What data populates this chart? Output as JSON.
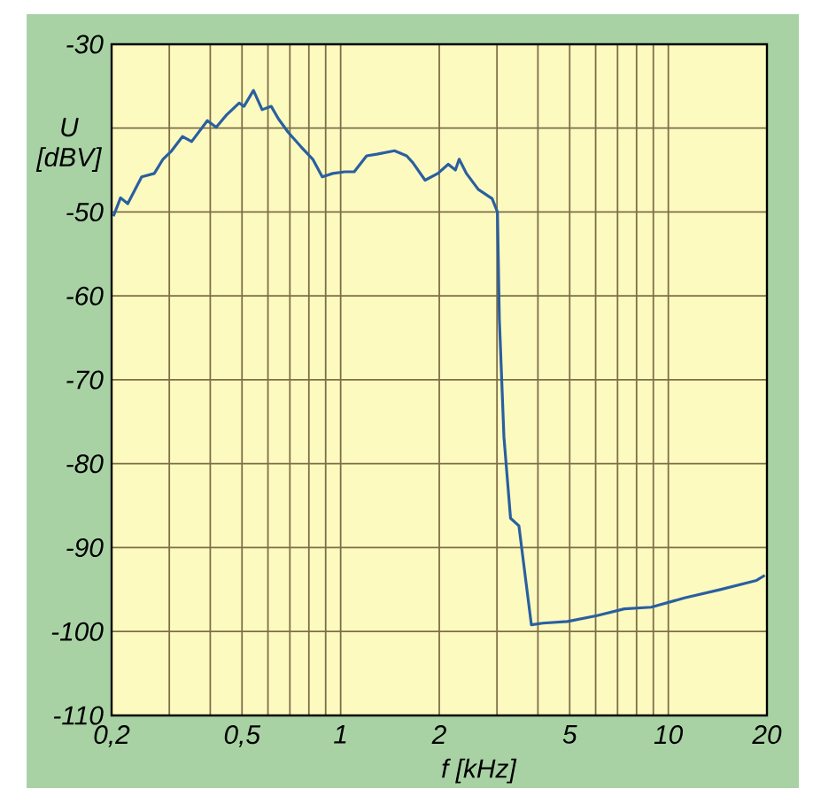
{
  "chart_data": {
    "type": "line",
    "xlabel": "f [kHz]",
    "ylabel": "U [dBV]",
    "log": "x",
    "grid": true,
    "marker": "none",
    "line_style": "solid",
    "xlim": [
      0.2,
      20
    ],
    "ylim": [
      -110,
      -30
    ],
    "xticks": [
      {
        "value": 0.2,
        "label": "0,2"
      },
      {
        "value": 0.3,
        "label": null
      },
      {
        "value": 0.4,
        "label": null
      },
      {
        "value": 0.5,
        "label": "0,5"
      },
      {
        "value": 0.6,
        "label": null
      },
      {
        "value": 0.7,
        "label": null
      },
      {
        "value": 0.8,
        "label": null
      },
      {
        "value": 0.9,
        "label": null
      },
      {
        "value": 1,
        "label": "1"
      },
      {
        "value": 2,
        "label": "2"
      },
      {
        "value": 3,
        "label": null
      },
      {
        "value": 4,
        "label": null
      },
      {
        "value": 5,
        "label": "5"
      },
      {
        "value": 6,
        "label": null
      },
      {
        "value": 7,
        "label": null
      },
      {
        "value": 8,
        "label": null
      },
      {
        "value": 9,
        "label": null
      },
      {
        "value": 10,
        "label": "10"
      },
      {
        "value": 20,
        "label": "20"
      }
    ],
    "yticks": [
      -110,
      -100,
      -90,
      -80,
      -70,
      -60,
      -50,
      {
        "value": -40,
        "label": null
      },
      -30
    ],
    "x": [
      0.2025,
      0.213,
      0.224,
      0.247,
      0.27,
      0.287,
      0.305,
      0.329,
      0.351,
      0.392,
      0.417,
      0.449,
      0.49,
      0.507,
      0.542,
      0.576,
      0.614,
      0.646,
      0.692,
      0.756,
      0.822,
      0.879,
      0.946,
      1.03,
      1.1,
      1.2,
      1.29,
      1.46,
      1.59,
      1.66,
      1.81,
      1.98,
      2.13,
      2.24,
      2.3,
      2.42,
      2.63,
      2.9,
      3.01,
      3.05,
      3.15,
      3.3,
      3.5,
      3.82,
      4.14,
      4.92,
      6.06,
      7.34,
      8.86,
      11.2,
      14.4,
      18.6,
      19.7
    ],
    "series": [
      {
        "color": "#2a5fa0",
        "values": [
          -50.5,
          -48.3,
          -49,
          -45.8,
          -45.4,
          -43.7,
          -42.7,
          -41,
          -41.6,
          -39.1,
          -39.9,
          -38.4,
          -37,
          -37.4,
          -35.5,
          -37.8,
          -37.4,
          -38.9,
          -40.5,
          -42.2,
          -43.7,
          -45.8,
          -45.4,
          -45.2,
          -45.2,
          -43.3,
          -43.1,
          -42.7,
          -43.3,
          -44.1,
          -46.2,
          -45.4,
          -44.3,
          -45,
          -43.7,
          -45.4,
          -47.3,
          -48.4,
          -50,
          -62.7,
          -76.8,
          -86.5,
          -87.4,
          -99.2,
          -99,
          -98.8,
          -98.1,
          -97.3,
          -97.1,
          -96,
          -95,
          -93.9,
          -93.3
        ]
      }
    ]
  }
}
